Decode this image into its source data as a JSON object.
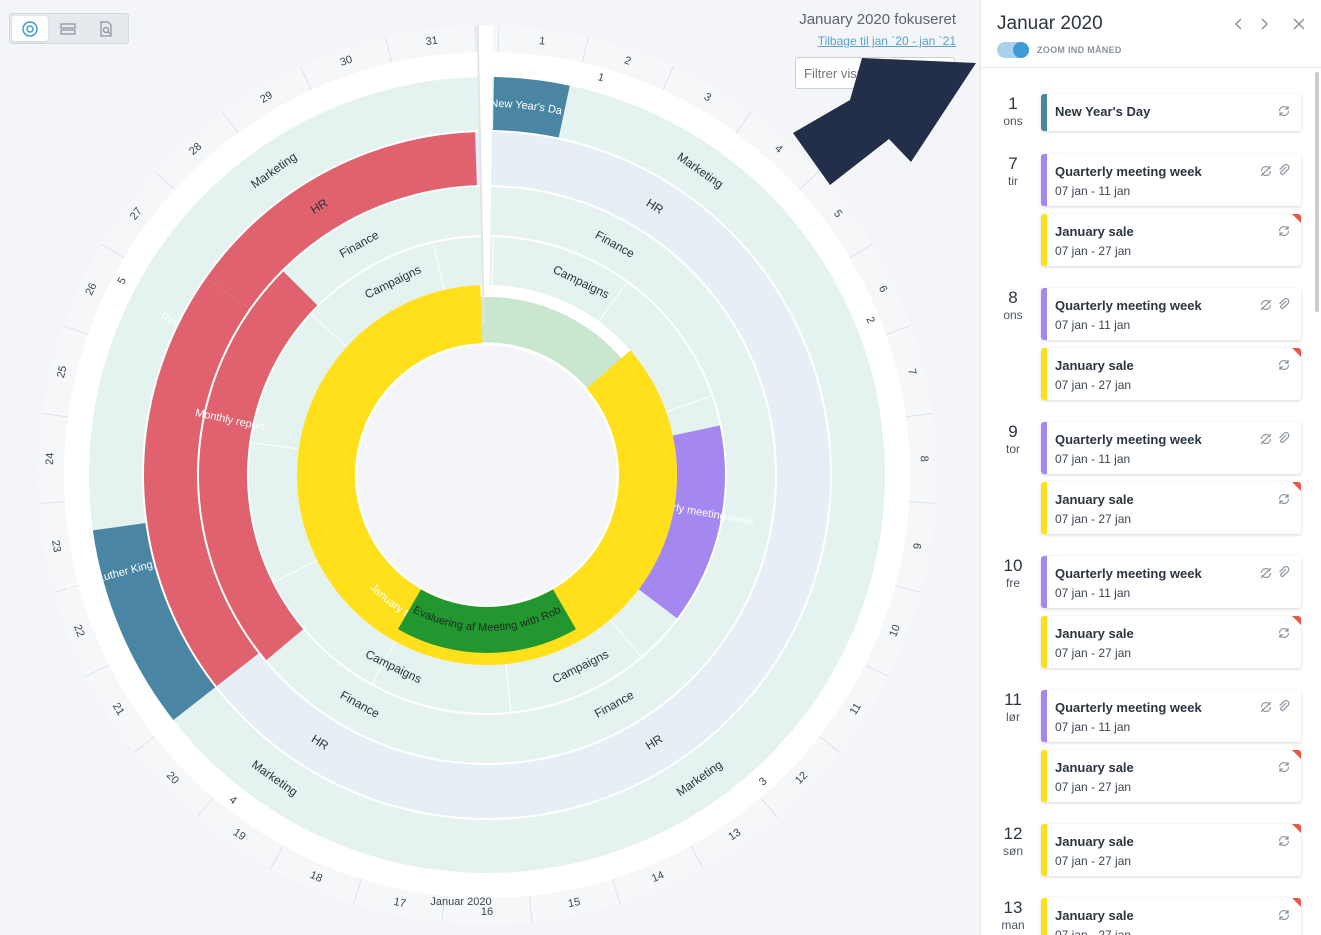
{
  "header": {
    "focus_title": "January 2020 fokuseret",
    "back_link": "Tilbage til jan `20 - jan `21",
    "filter_placeholder": "Filtrer visn"
  },
  "wheel": {
    "month_label": "Januar 2020",
    "ring_labels": [
      "Marketing",
      "HR",
      "Finance",
      "Campaigns"
    ],
    "day_ticks": [
      "1",
      "2",
      "3",
      "4",
      "5",
      "6",
      "7",
      "8",
      "9",
      "10",
      "11",
      "12",
      "13",
      "14",
      "15",
      "16",
      "17",
      "18",
      "19",
      "20",
      "21",
      "22",
      "23",
      "24",
      "25",
      "26",
      "27",
      "28",
      "29",
      "30",
      "31"
    ],
    "week_numbers": [
      "1",
      "2",
      "3",
      "4",
      "5"
    ],
    "events": [
      {
        "name": "New Year's Day",
        "color": "#4a86a4"
      },
      {
        "name": "Martin Luther King, Jr. Day",
        "color": "#4a86a4"
      },
      {
        "name": "Recruitment efforts",
        "color": "#e0626e"
      },
      {
        "name": "Monthly report",
        "color": "#e0626e"
      },
      {
        "name": "Quarterly meeting week",
        "color": "#a488f0"
      },
      {
        "name": "January sale",
        "color": "#ffe01a"
      },
      {
        "name": "Evaluering af Meeting with Rob",
        "color": "#22962f"
      }
    ]
  },
  "panel": {
    "title": "Januar 2020",
    "zoom_label": "ZOOM IND MÅNED",
    "days": [
      {
        "num": "1",
        "name": "ons",
        "events": [
          {
            "title": "New Year's Day",
            "dates": "",
            "color": "#4a86a4",
            "corner": false,
            "icons": "sync"
          }
        ]
      },
      {
        "num": "7",
        "name": "tir",
        "events": [
          {
            "title": "Quarterly meeting week",
            "dates": "07 jan - 11 jan",
            "color": "#a488f0",
            "corner": false,
            "icons": "nosync-clip"
          },
          {
            "title": "January sale",
            "dates": "07 jan - 27 jan",
            "color": "#ffe01a",
            "corner": true,
            "icons": "sync"
          }
        ]
      },
      {
        "num": "8",
        "name": "ons",
        "events": [
          {
            "title": "Quarterly meeting week",
            "dates": "07 jan - 11 jan",
            "color": "#a488f0",
            "corner": false,
            "icons": "nosync-clip"
          },
          {
            "title": "January sale",
            "dates": "07 jan - 27 jan",
            "color": "#ffe01a",
            "corner": true,
            "icons": "sync"
          }
        ]
      },
      {
        "num": "9",
        "name": "tor",
        "events": [
          {
            "title": "Quarterly meeting week",
            "dates": "07 jan - 11 jan",
            "color": "#a488f0",
            "corner": false,
            "icons": "nosync-clip"
          },
          {
            "title": "January sale",
            "dates": "07 jan - 27 jan",
            "color": "#ffe01a",
            "corner": true,
            "icons": "sync"
          }
        ]
      },
      {
        "num": "10",
        "name": "fre",
        "events": [
          {
            "title": "Quarterly meeting week",
            "dates": "07 jan - 11 jan",
            "color": "#a488f0",
            "corner": false,
            "icons": "nosync-clip"
          },
          {
            "title": "January sale",
            "dates": "07 jan - 27 jan",
            "color": "#ffe01a",
            "corner": true,
            "icons": "sync"
          }
        ]
      },
      {
        "num": "11",
        "name": "lør",
        "events": [
          {
            "title": "Quarterly meeting week",
            "dates": "07 jan - 11 jan",
            "color": "#a488f0",
            "corner": false,
            "icons": "nosync-clip"
          },
          {
            "title": "January sale",
            "dates": "07 jan - 27 jan",
            "color": "#ffe01a",
            "corner": true,
            "icons": "sync"
          }
        ]
      },
      {
        "num": "12",
        "name": "søn",
        "events": [
          {
            "title": "January sale",
            "dates": "07 jan - 27 jan",
            "color": "#ffe01a",
            "corner": true,
            "icons": "sync"
          }
        ]
      },
      {
        "num": "13",
        "name": "man",
        "events": [
          {
            "title": "January sale",
            "dates": "07 jan - 27 jan",
            "color": "#ffe01a",
            "corner": true,
            "icons": "sync"
          }
        ]
      }
    ]
  }
}
